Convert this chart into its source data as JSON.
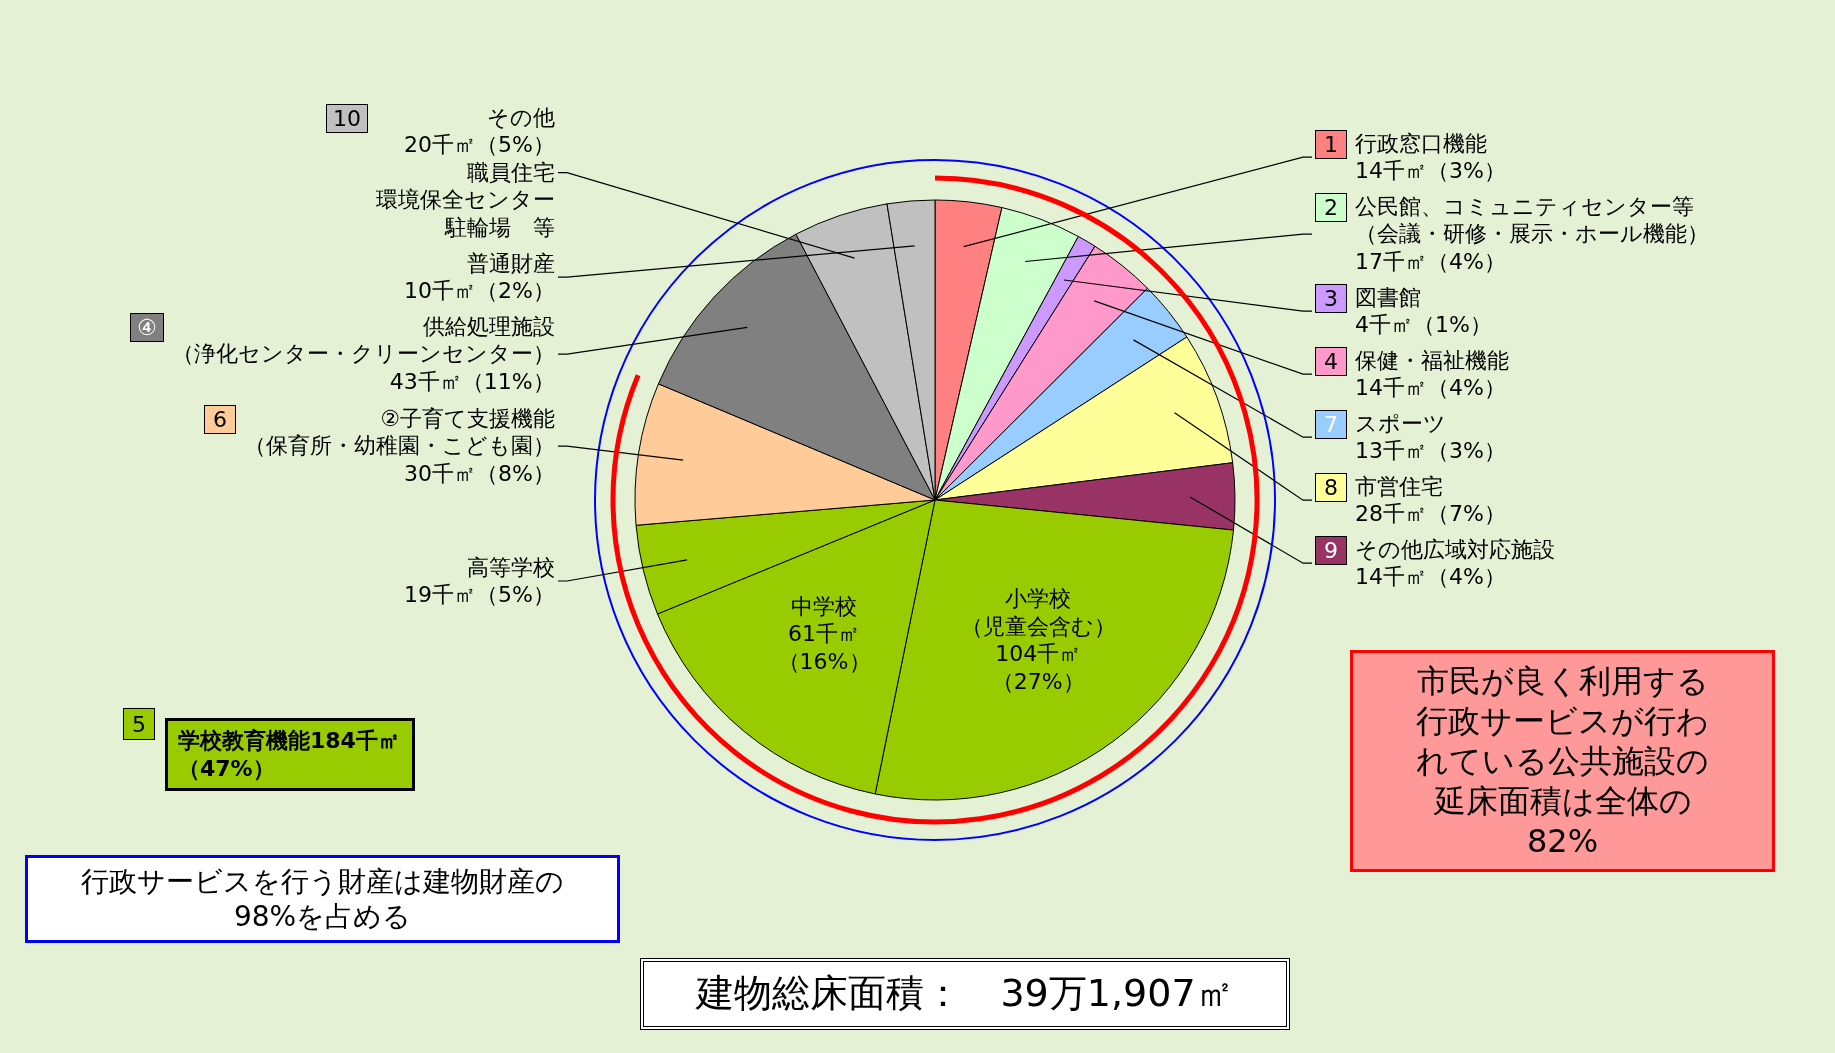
{
  "chart_data": {
    "type": "pie",
    "categories": [
      "1 行政窓口機能",
      "2 公民館、コミュニティセンター等（会議・研修・展示・ホール機能）",
      "3 図書館",
      "4 保健・福祉機能",
      "7 スポーツ",
      "8 市営住宅",
      "9 その他広域対応施設",
      "小学校（児童会含む）",
      "中学校",
      "高等学校",
      "6 ②子育て支援機能（保育所・幼稚園・こども園）",
      "④ 供給処理施設（浄化センター・クリーンセンター）",
      "10 その他",
      "普通財産"
    ],
    "values": [
      14,
      17,
      4,
      14,
      13,
      28,
      14,
      104,
      61,
      19,
      30,
      43,
      20,
      10
    ],
    "colors": [
      "#ff8080",
      "#ccffcc",
      "#cc99ff",
      "#ff99cc",
      "#99ccff",
      "#ffff99",
      "#993366",
      "#99cc00",
      "#99cc00",
      "#99cc00",
      "#ffcc99",
      "#808080",
      "#c0c0c0",
      "#c0c0c0"
    ],
    "value_labels": [
      "14千㎡（3%）",
      "17千㎡（4%）",
      "4千㎡（1%）",
      "14千㎡（4%）",
      "13千㎡（3%）",
      "28千㎡（7%）",
      "14千㎡（4%）",
      "104千㎡（27%）",
      "61千㎡（16%）",
      "19千㎡（5%）",
      "30千㎡（8%）",
      "43千㎡（11%）",
      "20千㎡（5%）",
      "10千㎡（2%）"
    ],
    "annotations": [
      "5 学校教育機能184千㎡（47%）",
      "市民が良く利用する行政サービスが行われている公共施設の延床面積は全体の82%",
      "行政サービスを行う財産は建物財産の98%を占める",
      "建物総床面積：　39万1,907㎡",
      "職員住宅",
      "環境保全センター",
      "駐輪場　等"
    ]
  }
}
